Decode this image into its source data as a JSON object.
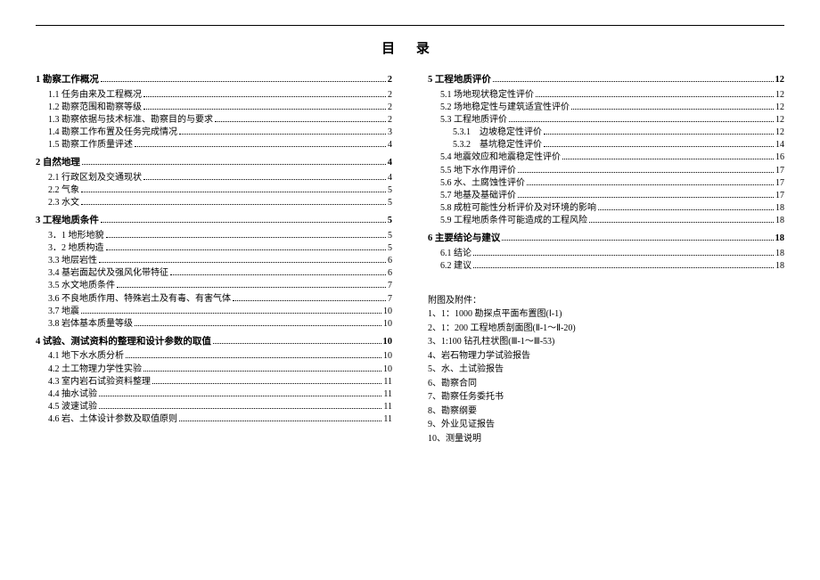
{
  "title": "目 录",
  "left": [
    {
      "level": 0,
      "label": "1 勘察工作概况",
      "page": "2"
    },
    {
      "level": 1,
      "label": "1.1 任务由来及工程概况",
      "page": "2"
    },
    {
      "level": 1,
      "label": "1.2 勘察范围和勘察等级",
      "page": "2"
    },
    {
      "level": 1,
      "label": "1.3 勘察依据与技术标准、勘察目的与要求",
      "page": "2"
    },
    {
      "level": 1,
      "label": "1.4 勘察工作布置及任务完成情况",
      "page": "3"
    },
    {
      "level": 1,
      "label": "1.5 勘察工作质量评述",
      "page": "4"
    },
    {
      "level": 0,
      "label": "2 自然地理",
      "page": "4"
    },
    {
      "level": 1,
      "label": "2.1 行政区划及交通现状",
      "page": "4"
    },
    {
      "level": 1,
      "label": "2.2 气象",
      "page": "5"
    },
    {
      "level": 1,
      "label": "2.3 水文",
      "page": "5"
    },
    {
      "level": 0,
      "label": "3 工程地质条件",
      "page": "5"
    },
    {
      "level": 1,
      "label": "3．1 地形地貌",
      "page": "5"
    },
    {
      "level": 1,
      "label": "3．2 地质构造",
      "page": "5"
    },
    {
      "level": 1,
      "label": "3.3 地层岩性",
      "page": "6"
    },
    {
      "level": 1,
      "label": "3.4 基岩面起伏及强风化带特征",
      "page": "6"
    },
    {
      "level": 1,
      "label": "3.5 水文地质条件",
      "page": "7"
    },
    {
      "level": 1,
      "label": "3.6 不良地质作用、特殊岩土及有毒、有害气体",
      "page": "7"
    },
    {
      "level": 1,
      "label": "3.7 地震",
      "page": "10"
    },
    {
      "level": 1,
      "label": "3.8 岩体基本质量等级",
      "page": "10"
    },
    {
      "level": 0,
      "label": "4 试验、测试资料的整理和设计参数的取值",
      "page": "10"
    },
    {
      "level": 1,
      "label": "4.1 地下水水质分析",
      "page": "10"
    },
    {
      "level": 1,
      "label": "4.2 土工物理力学性实验",
      "page": "10"
    },
    {
      "level": 1,
      "label": "4.3 室内岩石试验资料整理",
      "page": "11"
    },
    {
      "level": 1,
      "label": "4.4 抽水试验",
      "page": "11"
    },
    {
      "level": 1,
      "label": "4.5 波速试验",
      "page": "11"
    },
    {
      "level": 1,
      "label": "4.6 岩、土体设计参数及取值原则",
      "page": "11"
    }
  ],
  "right": [
    {
      "level": 0,
      "label": "5 工程地质评价",
      "page": "12"
    },
    {
      "level": 1,
      "label": "5.1 场地现状稳定性评价",
      "page": "12"
    },
    {
      "level": 1,
      "label": "5.2 场地稳定性与建筑适宜性评价",
      "page": "12"
    },
    {
      "level": 1,
      "label": "5.3 工程地质评价",
      "page": "12"
    },
    {
      "level": 2,
      "label": "5.3.1　边坡稳定性评价",
      "page": "12"
    },
    {
      "level": 2,
      "label": "5.3.2　基坑稳定性评价",
      "page": "14"
    },
    {
      "level": 1,
      "label": "5.4 地震效应和地震稳定性评价",
      "page": "16"
    },
    {
      "level": 1,
      "label": "5.5 地下水作用评价",
      "page": "17"
    },
    {
      "level": 1,
      "label": "5.6 水、土腐蚀性评价",
      "page": "17"
    },
    {
      "level": 1,
      "label": "5.7 地基及基础评价",
      "page": "17"
    },
    {
      "level": 1,
      "label": "5.8 成桩可能性分析评价及对环境的影响",
      "page": "18"
    },
    {
      "level": 1,
      "label": "5.9 工程地质条件可能造成的工程风险",
      "page": "18"
    },
    {
      "level": 0,
      "label": "6 主要结论与建议",
      "page": "18"
    },
    {
      "level": 1,
      "label": "6.1 结论",
      "page": "18"
    },
    {
      "level": 1,
      "label": "6.2 建议",
      "page": "18"
    }
  ],
  "appendix": {
    "heading": "附图及附件：",
    "items": [
      "1、1：1000 勘探点平面布置图(Ⅰ-1)",
      "2、1：200 工程地质剖面图(Ⅱ-1～Ⅱ-20)",
      "3、1:100 钻孔柱状图(Ⅲ-1～Ⅲ-53)",
      "4、岩石物理力学试验报告",
      "5、水、土试验报告",
      "6、勘察合同",
      "7、勘察任务委托书",
      "8、勘察纲要",
      "9、外业见证报告",
      "10、测量说明"
    ]
  }
}
